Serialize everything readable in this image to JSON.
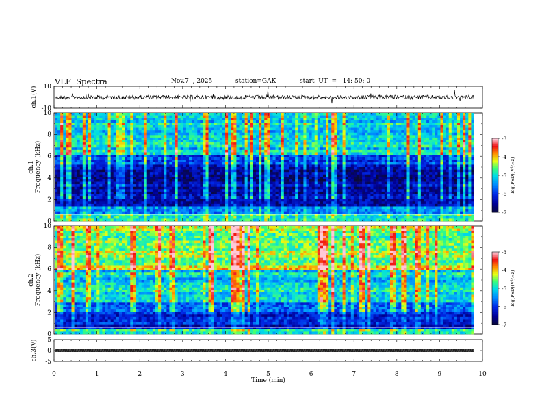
{
  "header": {
    "title": "VLF  Spectra",
    "date": "Nov.7  , 2025",
    "station": "station=GAK",
    "start": "start  UT  =   14: 50: 0"
  },
  "chart_data": [
    {
      "type": "line",
      "name": "ch1-waveform",
      "ylabel": "ch.1(V)",
      "ylim": [
        -10,
        10
      ],
      "yticks": [
        "10",
        "-10"
      ],
      "xlim": [
        0,
        10
      ]
    },
    {
      "type": "heatmap",
      "name": "ch1-spectrogram",
      "ylabel": "ch.1\nFrequency (kHz)",
      "ylabel_top": "ch.1",
      "ylabel_bottom": "Frequency  (kHz)",
      "ylim": [
        0,
        10
      ],
      "yticks": [
        "0",
        "2",
        "4",
        "6",
        "8",
        "10"
      ],
      "xlim": [
        0,
        9.8
      ],
      "colorbar": {
        "label": "log(PSD)(V²/Hz)",
        "range": [
          -7,
          -3
        ],
        "ticks": [
          "-7",
          "-6",
          "-5",
          "-4",
          "-3"
        ]
      }
    },
    {
      "type": "heatmap",
      "name": "ch2-spectrogram",
      "ylabel_top": "ch.2",
      "ylabel_bottom": "Frequency  (kHz)",
      "ylim": [
        0,
        10
      ],
      "yticks": [
        "0",
        "2",
        "4",
        "6",
        "8",
        "10"
      ],
      "xlim": [
        0,
        9.8
      ],
      "colorbar": {
        "label": "log(PSD)(V²/Hz)",
        "range": [
          -7,
          -3
        ],
        "ticks": [
          "-7",
          "-6",
          "-5",
          "-4",
          "-3"
        ]
      }
    },
    {
      "type": "line",
      "name": "ch3-waveform",
      "ylabel": "ch.3(V)",
      "ylim": [
        -5,
        5
      ],
      "yticks": [
        "5",
        "0",
        "-5"
      ],
      "xlabel": "Time  (min)",
      "xlim": [
        0,
        10
      ],
      "xticks": [
        "0",
        "1",
        "2",
        "3",
        "4",
        "5",
        "6",
        "7",
        "8",
        "9",
        "10"
      ]
    }
  ],
  "colorbar_label": "log(PSD)(V",
  "colorbar_label_sup": "2",
  "colorbar_label_end": "/Hz)",
  "colors": {
    "scale": [
      "#0b0b3a",
      "#0000cc",
      "#0070ff",
      "#00d0ff",
      "#30ff80",
      "#ffff00",
      "#ff8000",
      "#ff0000",
      "#ffc0d0",
      "#ffffff"
    ]
  }
}
